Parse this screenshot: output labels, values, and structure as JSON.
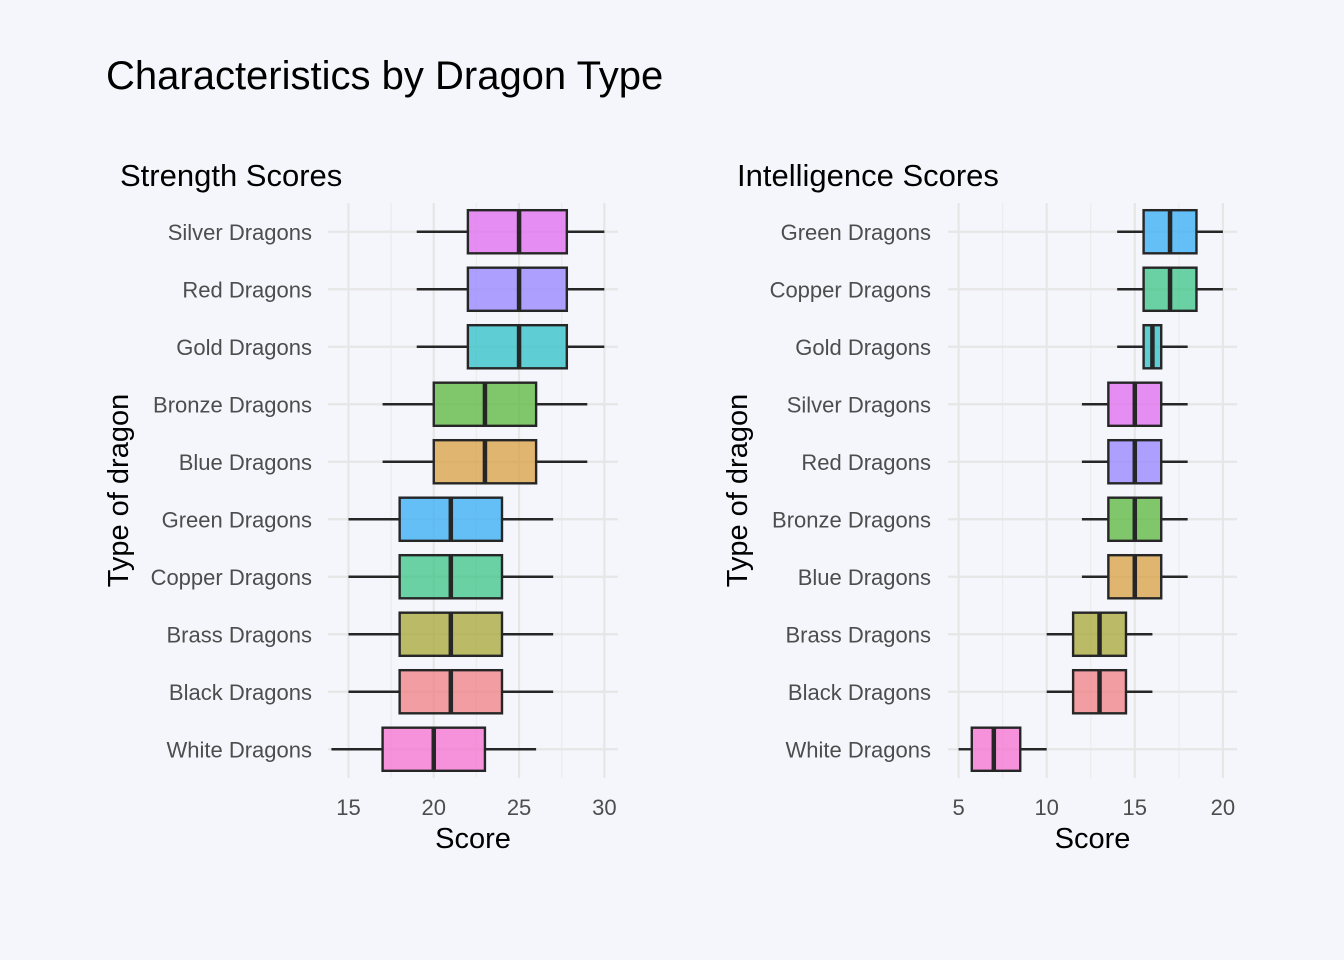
{
  "title": "Characteristics by Dragon Type",
  "chart_data": [
    {
      "type": "boxplot",
      "orientation": "horizontal",
      "title": "Strength Scores",
      "xlabel": "Score",
      "ylabel": "Type of dragon",
      "xlim": [
        13.8,
        30.8
      ],
      "xticks": [
        15,
        20,
        25,
        30
      ],
      "grid": true,
      "categories": [
        "White Dragons",
        "Black Dragons",
        "Brass Dragons",
        "Copper Dragons",
        "Green Dragons",
        "Blue Dragons",
        "Bronze Dragons",
        "Gold Dragons",
        "Red Dragons",
        "Silver Dragons"
      ],
      "boxes": [
        {
          "category": "White Dragons",
          "min": 14,
          "q1": 17,
          "median": 20,
          "q3": 23,
          "max": 26,
          "color": "#f766cf"
        },
        {
          "category": "Black Dragons",
          "min": 15,
          "q1": 18,
          "median": 21,
          "q3": 24,
          "max": 27,
          "color": "#f0787a"
        },
        {
          "category": "Brass Dragons",
          "min": 15,
          "q1": 18,
          "median": 21,
          "q3": 24,
          "max": 27,
          "color": "#a3a328"
        },
        {
          "category": "Copper Dragons",
          "min": 15,
          "q1": 18,
          "median": 21,
          "q3": 24,
          "max": 27,
          "color": "#2ec27e"
        },
        {
          "category": "Green Dragons",
          "min": 15,
          "q1": 18,
          "median": 21,
          "q3": 24,
          "max": 27,
          "color": "#28a8f5"
        },
        {
          "category": "Blue Dragons",
          "min": 17,
          "q1": 20,
          "median": 23,
          "q3": 26,
          "max": 29,
          "color": "#d69a35"
        },
        {
          "category": "Bronze Dragons",
          "min": 17,
          "q1": 20,
          "median": 23,
          "q3": 26,
          "max": 29,
          "color": "#4fb32f"
        },
        {
          "category": "Gold Dragons",
          "min": 19,
          "q1": 22,
          "median": 25,
          "q3": 27.8,
          "max": 30,
          "color": "#1fbcc3"
        },
        {
          "category": "Red Dragons",
          "min": 19,
          "q1": 22,
          "median": 25,
          "q3": 27.8,
          "max": 30,
          "color": "#8f7bff"
        },
        {
          "category": "Silver Dragons",
          "min": 19,
          "q1": 22,
          "median": 25,
          "q3": 27.8,
          "max": 30,
          "color": "#e061f0"
        }
      ]
    },
    {
      "type": "boxplot",
      "orientation": "horizontal",
      "title": "Intelligence Scores",
      "xlabel": "Score",
      "ylabel": "Type of dragon",
      "xlim": [
        4.4,
        20.8
      ],
      "xticks": [
        5,
        10,
        15,
        20
      ],
      "grid": true,
      "categories": [
        "White Dragons",
        "Black Dragons",
        "Brass Dragons",
        "Blue Dragons",
        "Bronze Dragons",
        "Red Dragons",
        "Silver Dragons",
        "Gold Dragons",
        "Copper Dragons",
        "Green Dragons"
      ],
      "boxes": [
        {
          "category": "White Dragons",
          "min": 5,
          "q1": 5.75,
          "median": 7,
          "q3": 8.5,
          "max": 10,
          "color": "#f766cf"
        },
        {
          "category": "Black Dragons",
          "min": 10,
          "q1": 11.5,
          "median": 13,
          "q3": 14.5,
          "max": 16,
          "color": "#f0787a"
        },
        {
          "category": "Brass Dragons",
          "min": 10,
          "q1": 11.5,
          "median": 13,
          "q3": 14.5,
          "max": 16,
          "color": "#a3a328"
        },
        {
          "category": "Blue Dragons",
          "min": 12,
          "q1": 13.5,
          "median": 15,
          "q3": 16.5,
          "max": 18,
          "color": "#d69a35"
        },
        {
          "category": "Bronze Dragons",
          "min": 12,
          "q1": 13.5,
          "median": 15,
          "q3": 16.5,
          "max": 18,
          "color": "#4fb32f"
        },
        {
          "category": "Red Dragons",
          "min": 12,
          "q1": 13.5,
          "median": 15,
          "q3": 16.5,
          "max": 18,
          "color": "#8f7bff"
        },
        {
          "category": "Silver Dragons",
          "min": 12,
          "q1": 13.5,
          "median": 15,
          "q3": 16.5,
          "max": 18,
          "color": "#e061f0"
        },
        {
          "category": "Gold Dragons",
          "min": 14,
          "q1": 15.5,
          "median": 16,
          "q3": 16.5,
          "max": 18,
          "color": "#1fbcc3"
        },
        {
          "category": "Copper Dragons",
          "min": 14,
          "q1": 15.5,
          "median": 17,
          "q3": 18.5,
          "max": 20,
          "color": "#2ec27e"
        },
        {
          "category": "Green Dragons",
          "min": 14,
          "q1": 15.5,
          "median": 17,
          "q3": 18.5,
          "max": 20,
          "color": "#28a8f5"
        }
      ]
    }
  ]
}
